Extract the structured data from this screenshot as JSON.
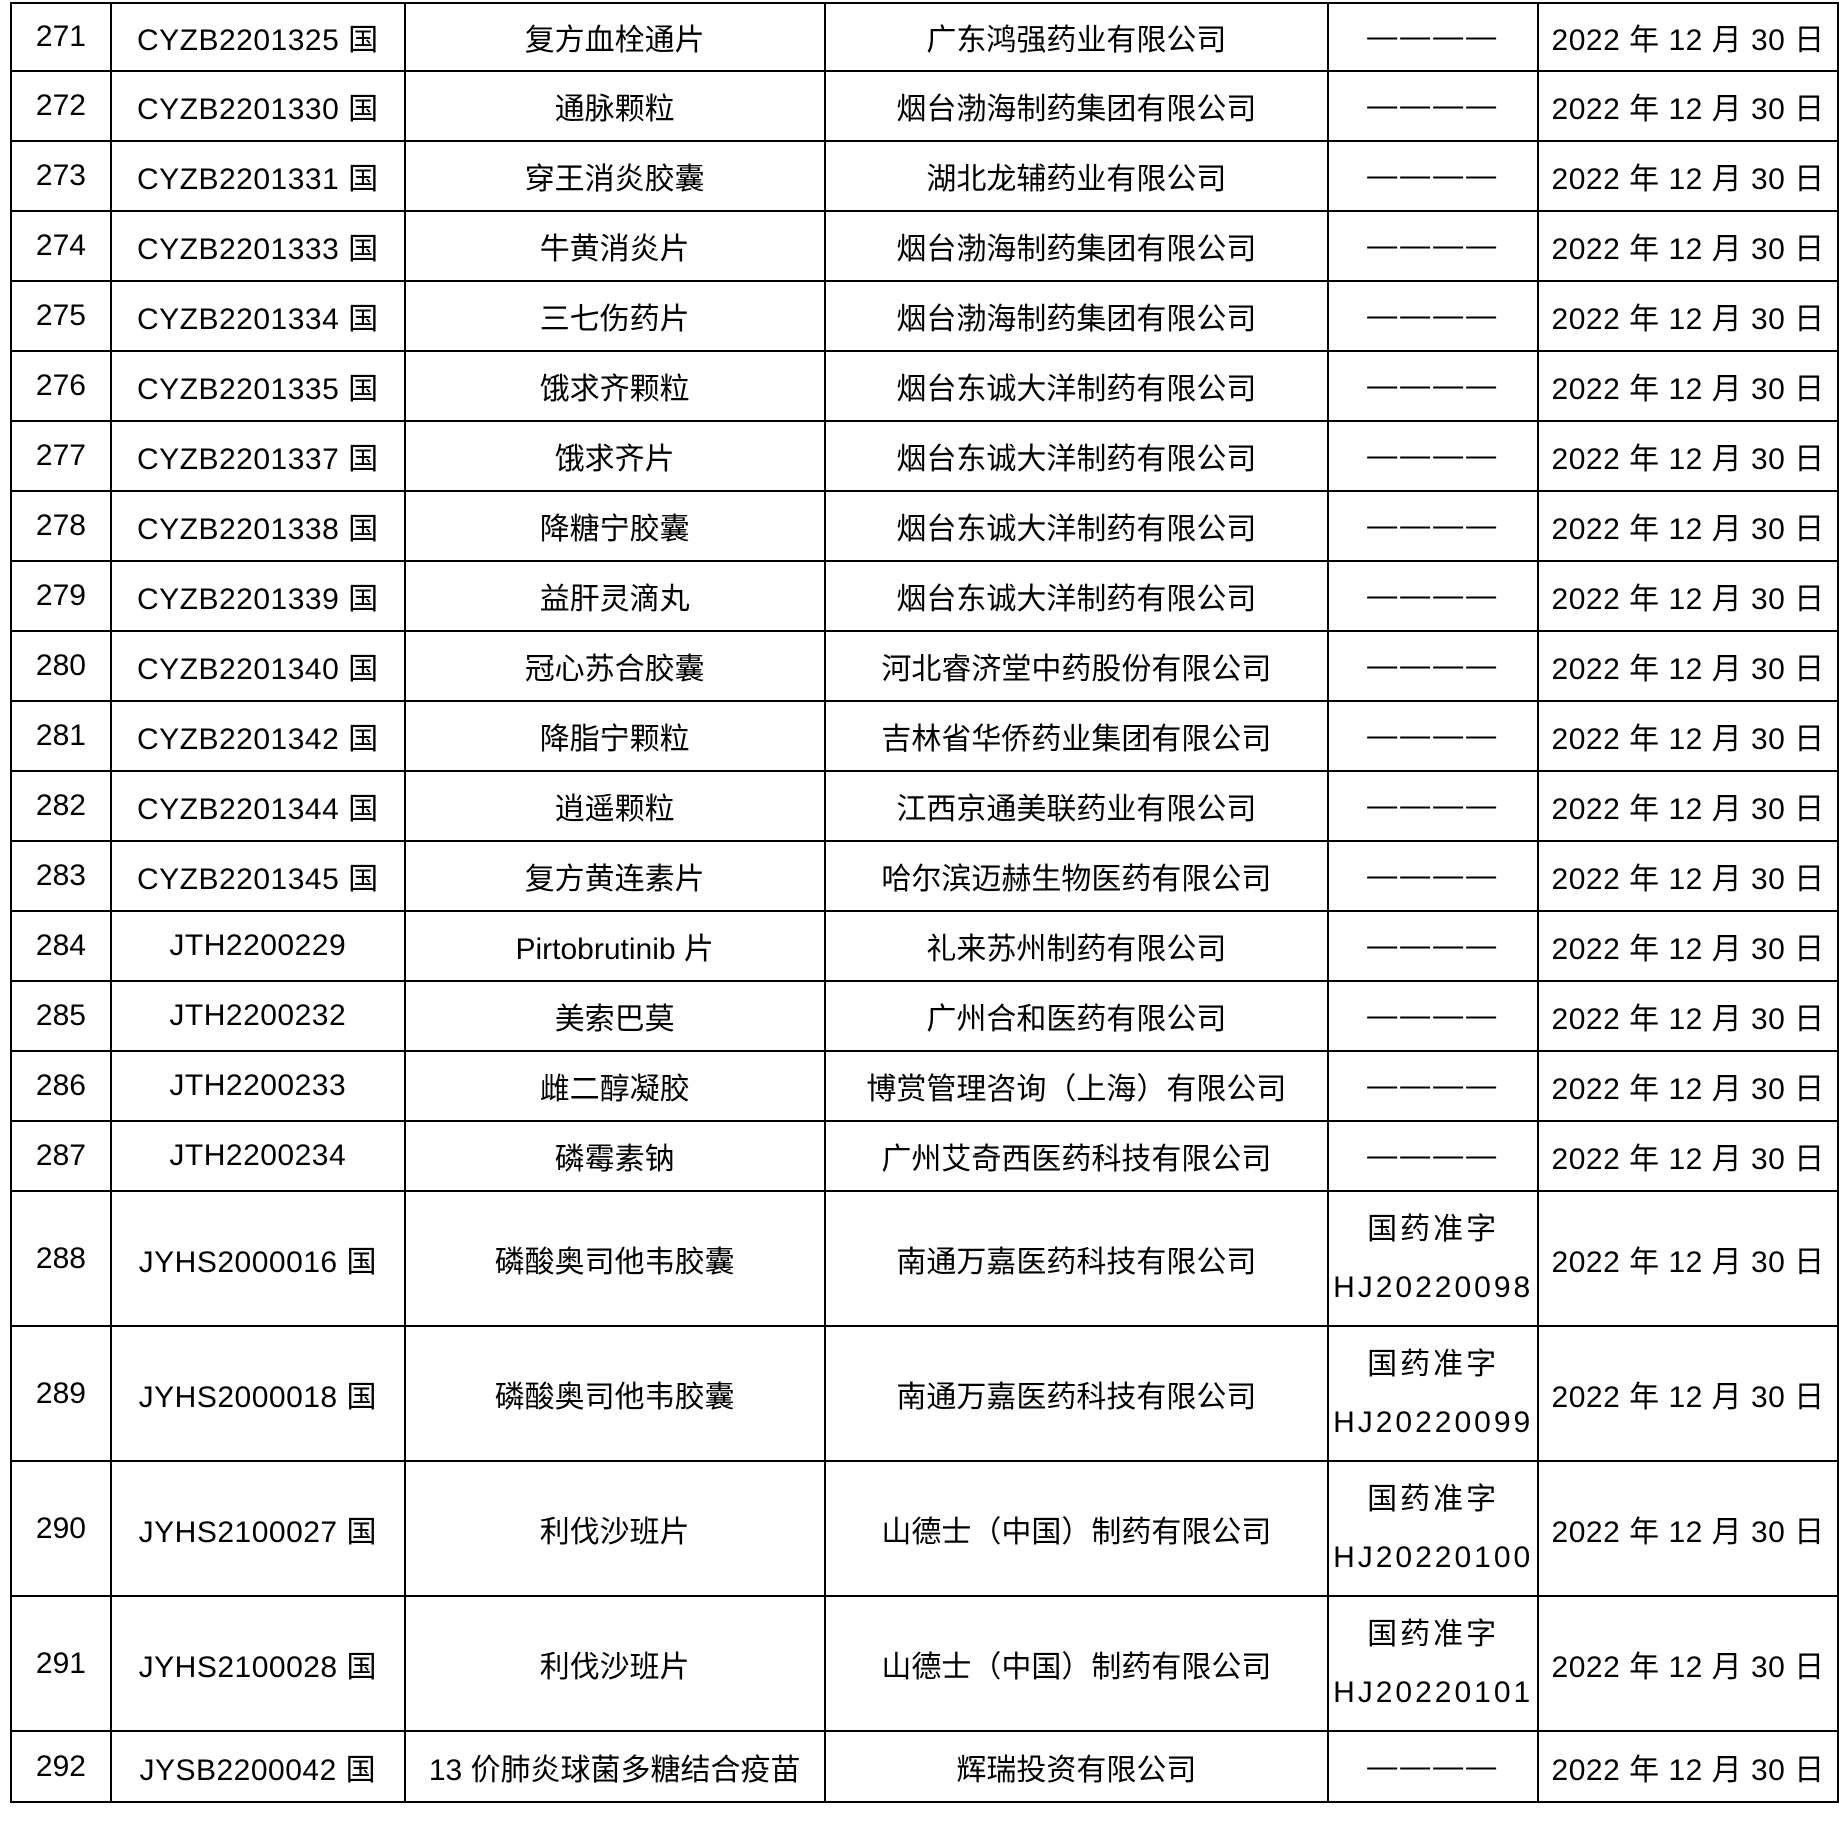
{
  "table": {
    "rows": [
      {
        "no": "271",
        "code": "CYZB2201325 国",
        "name": "复方血栓通片",
        "company": "广东鸿强药业有限公司",
        "approval_lines": [
          "————"
        ],
        "date": "2022 年 12 月 30 日"
      },
      {
        "no": "272",
        "code": "CYZB2201330 国",
        "name": "通脉颗粒",
        "company": "烟台渤海制药集团有限公司",
        "approval_lines": [
          "————"
        ],
        "date": "2022 年 12 月 30 日"
      },
      {
        "no": "273",
        "code": "CYZB2201331 国",
        "name": "穿王消炎胶囊",
        "company": "湖北龙辅药业有限公司",
        "approval_lines": [
          "————"
        ],
        "date": "2022 年 12 月 30 日"
      },
      {
        "no": "274",
        "code": "CYZB2201333 国",
        "name": "牛黄消炎片",
        "company": "烟台渤海制药集团有限公司",
        "approval_lines": [
          "————"
        ],
        "date": "2022 年 12 月 30 日"
      },
      {
        "no": "275",
        "code": "CYZB2201334 国",
        "name": "三七伤药片",
        "company": "烟台渤海制药集团有限公司",
        "approval_lines": [
          "————"
        ],
        "date": "2022 年 12 月 30 日"
      },
      {
        "no": "276",
        "code": "CYZB2201335 国",
        "name": "饿求齐颗粒",
        "company": "烟台东诚大洋制药有限公司",
        "approval_lines": [
          "————"
        ],
        "date": "2022 年 12 月 30 日"
      },
      {
        "no": "277",
        "code": "CYZB2201337 国",
        "name": "饿求齐片",
        "company": "烟台东诚大洋制药有限公司",
        "approval_lines": [
          "————"
        ],
        "date": "2022 年 12 月 30 日"
      },
      {
        "no": "278",
        "code": "CYZB2201338 国",
        "name": "降糖宁胶囊",
        "company": "烟台东诚大洋制药有限公司",
        "approval_lines": [
          "————"
        ],
        "date": "2022 年 12 月 30 日"
      },
      {
        "no": "279",
        "code": "CYZB2201339 国",
        "name": "益肝灵滴丸",
        "company": "烟台东诚大洋制药有限公司",
        "approval_lines": [
          "————"
        ],
        "date": "2022 年 12 月 30 日"
      },
      {
        "no": "280",
        "code": "CYZB2201340 国",
        "name": "冠心苏合胶囊",
        "company": "河北睿济堂中药股份有限公司",
        "approval_lines": [
          "————"
        ],
        "date": "2022 年 12 月 30 日"
      },
      {
        "no": "281",
        "code": "CYZB2201342 国",
        "name": "降脂宁颗粒",
        "company": "吉林省华侨药业集团有限公司",
        "approval_lines": [
          "————"
        ],
        "date": "2022 年 12 月 30 日"
      },
      {
        "no": "282",
        "code": "CYZB2201344 国",
        "name": "逍遥颗粒",
        "company": "江西京通美联药业有限公司",
        "approval_lines": [
          "————"
        ],
        "date": "2022 年 12 月 30 日"
      },
      {
        "no": "283",
        "code": "CYZB2201345 国",
        "name": "复方黄连素片",
        "company": "哈尔滨迈赫生物医药有限公司",
        "approval_lines": [
          "————"
        ],
        "date": "2022 年 12 月 30 日"
      },
      {
        "no": "284",
        "code": "JTH2200229",
        "name": "Pirtobrutinib 片",
        "company": "礼来苏州制药有限公司",
        "approval_lines": [
          "————"
        ],
        "date": "2022 年 12 月 30 日"
      },
      {
        "no": "285",
        "code": "JTH2200232",
        "name": "美索巴莫",
        "company": "广州合和医药有限公司",
        "approval_lines": [
          "————"
        ],
        "date": "2022 年 12 月 30 日"
      },
      {
        "no": "286",
        "code": "JTH2200233",
        "name": "雌二醇凝胶",
        "company": "博赏管理咨询（上海）有限公司",
        "approval_lines": [
          "————"
        ],
        "date": "2022 年 12 月 30 日"
      },
      {
        "no": "287",
        "code": "JTH2200234",
        "name": "磷霉素钠",
        "company": "广州艾奇西医药科技有限公司",
        "approval_lines": [
          "————"
        ],
        "date": "2022 年 12 月 30 日"
      },
      {
        "no": "288",
        "code": "JYHS2000016 国",
        "name": "磷酸奥司他韦胶囊",
        "company": "南通万嘉医药科技有限公司",
        "approval_lines": [
          "国药准字",
          "HJ20220098"
        ],
        "date": "2022 年 12 月 30 日"
      },
      {
        "no": "289",
        "code": "JYHS2000018 国",
        "name": "磷酸奥司他韦胶囊",
        "company": "南通万嘉医药科技有限公司",
        "approval_lines": [
          "国药准字",
          "HJ20220099"
        ],
        "date": "2022 年 12 月 30 日"
      },
      {
        "no": "290",
        "code": "JYHS2100027 国",
        "name": "利伐沙班片",
        "company": "山德士（中国）制药有限公司",
        "approval_lines": [
          "国药准字",
          "HJ20220100"
        ],
        "date": "2022 年 12 月 30 日"
      },
      {
        "no": "291",
        "code": "JYHS2100028 国",
        "name": "利伐沙班片",
        "company": "山德士（中国）制药有限公司",
        "approval_lines": [
          "国药准字",
          "HJ20220101"
        ],
        "date": "2022 年 12 月 30 日"
      },
      {
        "no": "292",
        "code": "JYSB2200042 国",
        "name": "13 价肺炎球菌多糖结合疫苗",
        "company": "辉瑞投资有限公司",
        "approval_lines": [
          "————"
        ],
        "date": "2022 年 12 月 30 日"
      }
    ]
  }
}
